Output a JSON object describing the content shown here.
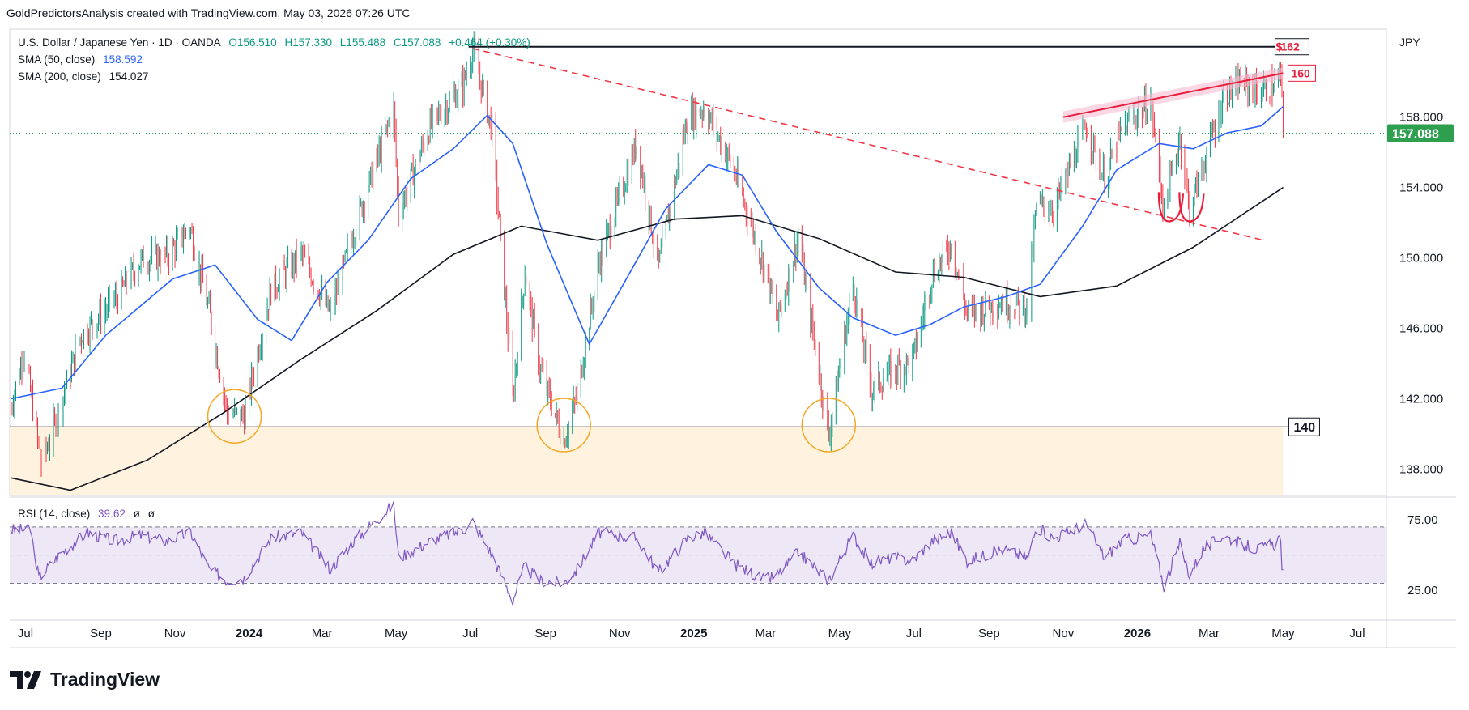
{
  "header": {
    "credit": "GoldPredictorsAnalysis created with TradingView.com, May 03, 2026 07:26 UTC",
    "symbol": "U.S. Dollar / Japanese Yen · 1D · OANDA",
    "open": "O156.510",
    "high": "H157.330",
    "low": "L155.488",
    "close": "C157.088",
    "change": "+0.464 (+0.30%)",
    "sma50_label": "SMA (50, close)",
    "sma50_value": "158.592",
    "sma200_label": "SMA (200, close)",
    "sma200_value": "154.027",
    "rsi_label": "RSI (14, close)",
    "rsi_value": "39.62",
    "rsi_extra1": "ø",
    "rsi_extra2": "ø",
    "currency": "JPY"
  },
  "brand": {
    "name": "TradingView"
  },
  "colors": {
    "up": "#089981",
    "down": "#f23645",
    "sma50": "#2962ff",
    "sma200": "#131722",
    "rsi": "#7e57c2",
    "rsi_band": "#ede7f6",
    "support_zone": "#fff3e0",
    "circles": "#f5a623",
    "resistance": "#e91e3c",
    "trend_dash": "#f23645",
    "price_badge": "#2e9e4f"
  },
  "chart_data": [
    {
      "type": "candlestick",
      "title": "U.S. Dollar / Japanese Yen · 1D · OANDA",
      "ylim": [
        136.5,
        163
      ],
      "xlim": [
        "2023-06-18",
        "2026-07-25"
      ],
      "yticks": [
        "138.000",
        "142.000",
        "146.000",
        "150.000",
        "154.000",
        "158.000"
      ],
      "xticks": [
        {
          "label": "Jul",
          "date": "2023-07-01"
        },
        {
          "label": "Sep",
          "date": "2023-09-01"
        },
        {
          "label": "Nov",
          "date": "2023-11-01"
        },
        {
          "label": "2024",
          "date": "2024-01-01",
          "bold": true
        },
        {
          "label": "Mar",
          "date": "2024-03-01"
        },
        {
          "label": "May",
          "date": "2024-05-01"
        },
        {
          "label": "Jul",
          "date": "2024-07-01"
        },
        {
          "label": "Sep",
          "date": "2024-09-01"
        },
        {
          "label": "Nov",
          "date": "2024-11-01"
        },
        {
          "label": "2025",
          "date": "2025-01-01",
          "bold": true
        },
        {
          "label": "Mar",
          "date": "2025-03-01"
        },
        {
          "label": "May",
          "date": "2025-05-01"
        },
        {
          "label": "Jul",
          "date": "2025-07-01"
        },
        {
          "label": "Sep",
          "date": "2025-09-01"
        },
        {
          "label": "Nov",
          "date": "2025-11-01"
        },
        {
          "label": "2026",
          "date": "2026-01-01",
          "bold": true
        },
        {
          "label": "Mar",
          "date": "2026-03-01"
        },
        {
          "label": "May",
          "date": "2026-05-01"
        },
        {
          "label": "Jul",
          "date": "2026-07-01"
        }
      ],
      "last_price": "157.088",
      "price_path": [
        [
          "2023-06-19",
          141.5
        ],
        [
          "2023-06-30",
          144.8
        ],
        [
          "2023-07-14",
          138.2
        ],
        [
          "2023-07-28",
          141.2
        ],
        [
          "2023-08-15",
          145.5
        ],
        [
          "2023-09-15",
          147.8
        ],
        [
          "2023-10-03",
          149.8
        ],
        [
          "2023-10-27",
          150.2
        ],
        [
          "2023-11-13",
          151.8
        ],
        [
          "2023-11-29",
          147.0
        ],
        [
          "2023-12-14",
          141.2
        ],
        [
          "2023-12-28",
          141.0
        ],
        [
          "2024-01-19",
          148.2
        ],
        [
          "2024-02-13",
          150.2
        ],
        [
          "2024-03-08",
          146.8
        ],
        [
          "2024-03-27",
          151.5
        ],
        [
          "2024-04-29",
          158.5
        ],
        [
          "2024-05-03",
          152.5
        ],
        [
          "2024-05-29",
          157.5
        ],
        [
          "2024-06-25",
          159.8
        ],
        [
          "2024-07-03",
          161.9
        ],
        [
          "2024-07-19",
          157.2
        ],
        [
          "2024-08-05",
          142.0
        ],
        [
          "2024-08-15",
          149.2
        ],
        [
          "2024-08-27",
          143.8
        ],
        [
          "2024-09-16",
          139.6
        ],
        [
          "2024-09-27",
          142.2
        ],
        [
          "2024-10-15",
          149.8
        ],
        [
          "2024-11-15",
          156.5
        ],
        [
          "2024-12-03",
          149.5
        ],
        [
          "2024-12-27",
          158.0
        ],
        [
          "2025-01-10",
          158.5
        ],
        [
          "2025-02-03",
          155.0
        ],
        [
          "2025-02-28",
          149.5
        ],
        [
          "2025-03-11",
          146.5
        ],
        [
          "2025-03-28",
          151.2
        ],
        [
          "2025-04-22",
          139.9
        ],
        [
          "2025-05-12",
          148.5
        ],
        [
          "2025-05-27",
          142.5
        ],
        [
          "2025-06-12",
          143.5
        ],
        [
          "2025-06-30",
          144.2
        ],
        [
          "2025-07-16",
          149.0
        ],
        [
          "2025-08-01",
          150.8
        ],
        [
          "2025-08-14",
          146.8
        ],
        [
          "2025-09-12",
          147.5
        ],
        [
          "2025-10-03",
          147.2
        ],
        [
          "2025-10-10",
          153.0
        ],
        [
          "2025-10-24",
          152.8
        ],
        [
          "2025-11-20",
          157.5
        ],
        [
          "2025-12-05",
          154.5
        ],
        [
          "2025-12-19",
          157.2
        ],
        [
          "2026-01-12",
          158.9
        ],
        [
          "2026-01-23",
          152.6
        ],
        [
          "2026-02-05",
          156.9
        ],
        [
          "2026-02-13",
          152.8
        ],
        [
          "2026-02-24",
          155.2
        ],
        [
          "2026-03-13",
          159.2
        ],
        [
          "2026-03-27",
          160.0
        ],
        [
          "2026-04-10",
          159.4
        ],
        [
          "2026-04-24",
          159.8
        ],
        [
          "2026-04-29",
          160.4
        ],
        [
          "2026-05-01",
          157.1
        ]
      ],
      "sma50_path": [
        [
          "2023-06-19",
          142.0
        ],
        [
          "2023-07-31",
          142.6
        ],
        [
          "2023-09-05",
          145.6
        ],
        [
          "2023-10-30",
          148.8
        ],
        [
          "2023-12-04",
          149.6
        ],
        [
          "2024-01-08",
          146.5
        ],
        [
          "2024-02-05",
          145.3
        ],
        [
          "2024-03-05",
          148.6
        ],
        [
          "2024-04-08",
          151.0
        ],
        [
          "2024-05-13",
          154.5
        ],
        [
          "2024-06-17",
          156.2
        ],
        [
          "2024-07-15",
          158.1
        ],
        [
          "2024-08-05",
          156.5
        ],
        [
          "2024-09-02",
          150.8
        ],
        [
          "2024-10-07",
          145.1
        ],
        [
          "2024-11-04",
          148.5
        ],
        [
          "2024-12-09",
          152.8
        ],
        [
          "2025-01-13",
          155.3
        ],
        [
          "2025-02-10",
          154.7
        ],
        [
          "2025-03-10",
          151.5
        ],
        [
          "2025-04-14",
          148.3
        ],
        [
          "2025-05-12",
          146.6
        ],
        [
          "2025-06-16",
          145.6
        ],
        [
          "2025-07-14",
          146.2
        ],
        [
          "2025-08-11",
          147.2
        ],
        [
          "2025-09-15",
          147.8
        ],
        [
          "2025-10-13",
          148.5
        ],
        [
          "2025-11-17",
          151.8
        ],
        [
          "2025-12-15",
          155.0
        ],
        [
          "2026-01-19",
          156.5
        ],
        [
          "2026-02-16",
          156.2
        ],
        [
          "2026-03-16",
          157.1
        ],
        [
          "2026-04-13",
          157.5
        ],
        [
          "2026-05-01",
          158.6
        ]
      ],
      "sma200_path": [
        [
          "2023-06-19",
          137.5
        ],
        [
          "2023-08-07",
          136.8
        ],
        [
          "2023-10-09",
          138.5
        ],
        [
          "2023-12-11",
          141.2
        ],
        [
          "2024-02-12",
          144.2
        ],
        [
          "2024-04-15",
          147.0
        ],
        [
          "2024-06-17",
          150.2
        ],
        [
          "2024-08-12",
          151.8
        ],
        [
          "2024-10-14",
          151.0
        ],
        [
          "2024-12-16",
          152.2
        ],
        [
          "2025-02-10",
          152.4
        ],
        [
          "2025-04-14",
          151.1
        ],
        [
          "2025-06-16",
          149.2
        ],
        [
          "2025-08-11",
          148.9
        ],
        [
          "2025-10-13",
          147.8
        ],
        [
          "2025-12-15",
          148.4
        ],
        [
          "2026-02-16",
          150.6
        ],
        [
          "2026-05-01",
          154.0
        ]
      ],
      "annotations": {
        "horizontal_162": {
          "value": 162,
          "label": "162",
          "from": "2024-07-03",
          "to": "2026-05-01"
        },
        "support_140": {
          "value": 140.4,
          "label": "140",
          "from": "2023-06-18",
          "to": "2026-05-01"
        },
        "resistance_160": {
          "label": "160",
          "from": [
            "2025-11-01",
            158.0
          ],
          "to": [
            "2026-05-01",
            160.5
          ]
        },
        "dashed_trendline": {
          "from": [
            "2024-07-03",
            161.9
          ],
          "to": [
            "2026-04-15",
            151.0
          ]
        },
        "support_circles": [
          {
            "date": "2023-12-20",
            "value": 141.0
          },
          {
            "date": "2024-09-16",
            "value": 140.5
          },
          {
            "date": "2025-04-22",
            "value": 140.5
          }
        ],
        "double_bottom_arcs": [
          {
            "date": "2026-01-28",
            "value": 153.0
          },
          {
            "date": "2026-02-14",
            "value": 153.0
          }
        ]
      }
    },
    {
      "type": "line",
      "title": "RSI (14, close)",
      "ylim": [
        5,
        90
      ],
      "yticks": [
        "75.00",
        "25.00"
      ],
      "bands": [
        70,
        50,
        30
      ],
      "last_value": "39.62",
      "rsi_path": [
        [
          "2023-06-19",
          68
        ],
        [
          "2023-07-05",
          68
        ],
        [
          "2023-07-12",
          34
        ],
        [
          "2023-07-31",
          52
        ],
        [
          "2023-08-21",
          66
        ],
        [
          "2023-09-12",
          60
        ],
        [
          "2023-10-03",
          64
        ],
        [
          "2023-10-26",
          60
        ],
        [
          "2023-11-14",
          66
        ],
        [
          "2023-11-29",
          40
        ],
        [
          "2023-12-14",
          32
        ],
        [
          "2023-12-28",
          34
        ],
        [
          "2024-01-19",
          62
        ],
        [
          "2024-02-13",
          66
        ],
        [
          "2024-03-08",
          40
        ],
        [
          "2024-03-27",
          60
        ],
        [
          "2024-04-29",
          86
        ],
        [
          "2024-05-03",
          48
        ],
        [
          "2024-05-29",
          60
        ],
        [
          "2024-06-25",
          68
        ],
        [
          "2024-07-03",
          74
        ],
        [
          "2024-07-19",
          50
        ],
        [
          "2024-08-05",
          18
        ],
        [
          "2024-08-15",
          42
        ],
        [
          "2024-08-27",
          32
        ],
        [
          "2024-09-16",
          30
        ],
        [
          "2024-09-27",
          40
        ],
        [
          "2024-10-15",
          66
        ],
        [
          "2024-11-15",
          62
        ],
        [
          "2024-12-03",
          38
        ],
        [
          "2024-12-27",
          62
        ],
        [
          "2025-01-10",
          66
        ],
        [
          "2025-02-03",
          44
        ],
        [
          "2025-02-28",
          32
        ],
        [
          "2025-03-11",
          36
        ],
        [
          "2025-03-28",
          52
        ],
        [
          "2025-04-22",
          32
        ],
        [
          "2025-05-12",
          64
        ],
        [
          "2025-05-27",
          44
        ],
        [
          "2025-06-12",
          48
        ],
        [
          "2025-06-30",
          46
        ],
        [
          "2025-07-16",
          60
        ],
        [
          "2025-08-01",
          66
        ],
        [
          "2025-08-14",
          46
        ],
        [
          "2025-09-12",
          54
        ],
        [
          "2025-10-03",
          48
        ],
        [
          "2025-10-10",
          70
        ],
        [
          "2025-10-24",
          62
        ],
        [
          "2025-11-20",
          72
        ],
        [
          "2025-12-05",
          48
        ],
        [
          "2025-12-19",
          60
        ],
        [
          "2026-01-12",
          64
        ],
        [
          "2026-01-23",
          28
        ],
        [
          "2026-02-05",
          58
        ],
        [
          "2026-02-13",
          36
        ],
        [
          "2026-02-24",
          54
        ],
        [
          "2026-03-13",
          64
        ],
        [
          "2026-03-27",
          58
        ],
        [
          "2026-04-10",
          54
        ],
        [
          "2026-04-24",
          58
        ],
        [
          "2026-04-29",
          64
        ],
        [
          "2026-05-01",
          39.62
        ]
      ]
    }
  ]
}
